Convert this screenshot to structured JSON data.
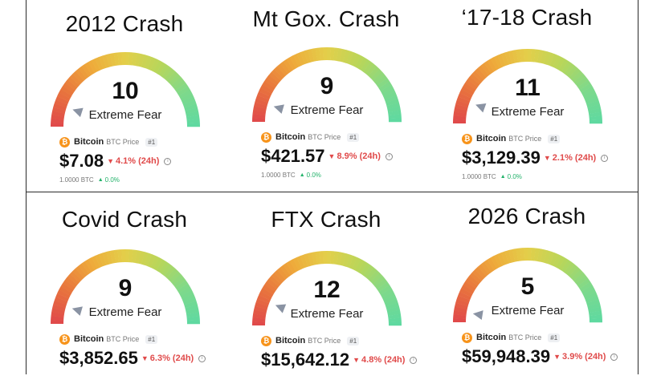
{
  "colors": {
    "fear_red": "#e04a4a",
    "greed_green": "#5fd9a0",
    "bitcoin_orange": "#f7931a",
    "positive": "#24b36b"
  },
  "panels": [
    {
      "title": "2012 Crash",
      "value": "10",
      "label": "Extreme Fear",
      "coin": "Bitcoin",
      "coin_sub": "BTC Price",
      "rank": "#1",
      "price": "$7.08",
      "change": "4.1% (24h)",
      "sub_amount": "1.0000 BTC",
      "sub_change": "0.0%"
    },
    {
      "title": "Mt Gox. Crash",
      "value": "9",
      "label": "Extreme Fear",
      "coin": "Bitcoin",
      "coin_sub": "BTC Price",
      "rank": "#1",
      "price": "$421.57",
      "change": "8.9% (24h)",
      "sub_amount": "1.0000 BTC",
      "sub_change": "0.0%"
    },
    {
      "title": "‘17-18 Crash",
      "value": "11",
      "label": "Extreme Fear",
      "coin": "Bitcoin",
      "coin_sub": "BTC Price",
      "rank": "#1",
      "price": "$3,129.39",
      "change": "2.1% (24h)",
      "sub_amount": "1.0000 BTC",
      "sub_change": "0.0%"
    },
    {
      "title": "Covid Crash",
      "value": "9",
      "label": "Extreme Fear",
      "coin": "Bitcoin",
      "coin_sub": "BTC Price",
      "rank": "#1",
      "price": "$3,852.65",
      "change": "6.3% (24h)"
    },
    {
      "title": "FTX Crash",
      "value": "12",
      "label": "Extreme Fear",
      "coin": "Bitcoin",
      "coin_sub": "BTC Price",
      "rank": "#1",
      "price": "$15,642.12",
      "change": "4.8% (24h)"
    },
    {
      "title": "2026 Crash",
      "value": "5",
      "label": "Extreme Fear",
      "coin": "Bitcoin",
      "coin_sub": "BTC Price",
      "rank": "#1",
      "price": "$59,948.39",
      "change": "3.9% (24h)"
    }
  ]
}
